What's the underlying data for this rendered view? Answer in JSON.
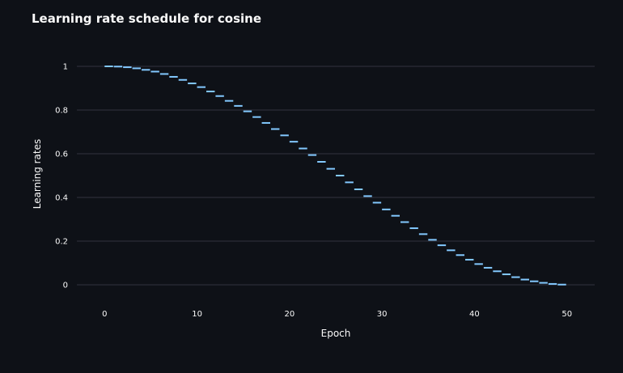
{
  "chart_data": {
    "type": "line",
    "title": "Learning rate schedule for cosine",
    "xlabel": "Epoch",
    "ylabel": "Learning rates",
    "xlim": [
      -3,
      53
    ],
    "ylim": [
      -0.1,
      1.1
    ],
    "x_ticks": [
      0,
      10,
      20,
      30,
      40,
      50
    ],
    "y_ticks": [
      0,
      0.2,
      0.4,
      0.6,
      0.8,
      1
    ],
    "y_tick_labels": [
      "0",
      "0.2",
      "0.4",
      "0.6",
      "0.8",
      "1"
    ],
    "grid": true,
    "legend": "none",
    "series": [
      {
        "color": "#83c9ff",
        "style": "step",
        "x": [
          0,
          1,
          2,
          3,
          4,
          5,
          6,
          7,
          8,
          9,
          10,
          11,
          12,
          13,
          14,
          15,
          16,
          17,
          18,
          19,
          20,
          21,
          22,
          23,
          24,
          25,
          26,
          27,
          28,
          29,
          30,
          31,
          32,
          33,
          34,
          35,
          36,
          37,
          38,
          39,
          40,
          41,
          42,
          43,
          44,
          45,
          46,
          47,
          48,
          49
        ],
        "values": [
          1.0,
          0.999,
          0.996,
          0.991,
          0.984,
          0.976,
          0.965,
          0.952,
          0.938,
          0.922,
          0.905,
          0.885,
          0.864,
          0.842,
          0.819,
          0.794,
          0.768,
          0.741,
          0.713,
          0.684,
          0.655,
          0.624,
          0.594,
          0.563,
          0.531,
          0.5,
          0.469,
          0.437,
          0.406,
          0.376,
          0.345,
          0.316,
          0.287,
          0.259,
          0.232,
          0.206,
          0.181,
          0.158,
          0.136,
          0.115,
          0.095,
          0.078,
          0.062,
          0.048,
          0.035,
          0.024,
          0.016,
          0.009,
          0.004,
          0.001
        ]
      }
    ]
  }
}
